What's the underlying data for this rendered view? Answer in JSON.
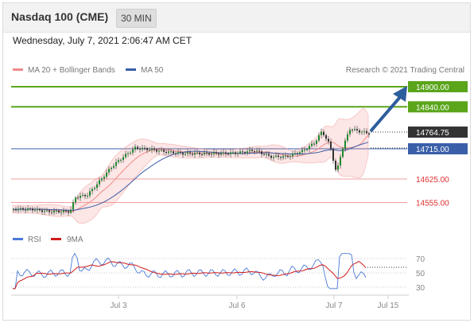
{
  "header": {
    "instrument": "Nasdaq 100 (CME)",
    "timeframe": "30 MIN"
  },
  "datetime": "Wednesday, July 7, 2021 2:06:47 AM CET",
  "legend": {
    "ma20_bollinger": "MA 20 + Bollinger Bands",
    "ma50": "MA 50",
    "credit": "Research © 2021 Trading Central",
    "rsi": "RSI",
    "rsi_ma": "9MA"
  },
  "colors": {
    "bollinger": "#f28b8b",
    "ma50": "#3a5ea8",
    "target_green": "#5aa51a",
    "arrow": "#2c5d9c",
    "support_red": "#e03030",
    "candle": "#1a8a2a",
    "rsi": "#4a7ad8",
    "rsi_ma": "#d01c1c"
  },
  "price_levels": [
    {
      "label": "14900.00",
      "value": 14900,
      "kind": "target"
    },
    {
      "label": "14840.00",
      "value": 14840,
      "kind": "target"
    },
    {
      "label": "14764.75",
      "value": 14764.75,
      "kind": "last"
    },
    {
      "label": "14715.00",
      "value": 14715,
      "kind": "pivot"
    },
    {
      "label": "14625.00",
      "value": 14625,
      "kind": "support"
    },
    {
      "label": "14555.00",
      "value": 14555,
      "kind": "support"
    }
  ],
  "rsi_axis": {
    "levels": [
      "70",
      "50",
      "30"
    ]
  },
  "x_axis": {
    "labels": [
      "Jul 3",
      "Jul 6",
      "Jul 7",
      "Jul 15"
    ]
  },
  "chart_data": {
    "type": "line",
    "price": {
      "series": [
        {
          "name": "MA 20 + Bollinger Bands"
        },
        {
          "name": "MA 50"
        }
      ],
      "horizontal_levels": [
        14900,
        14840,
        14764.75,
        14715,
        14625,
        14555
      ]
    },
    "rsi": {
      "series": [
        {
          "name": "RSI"
        },
        {
          "name": "9MA"
        }
      ],
      "levels": [
        70,
        50,
        30
      ]
    }
  }
}
